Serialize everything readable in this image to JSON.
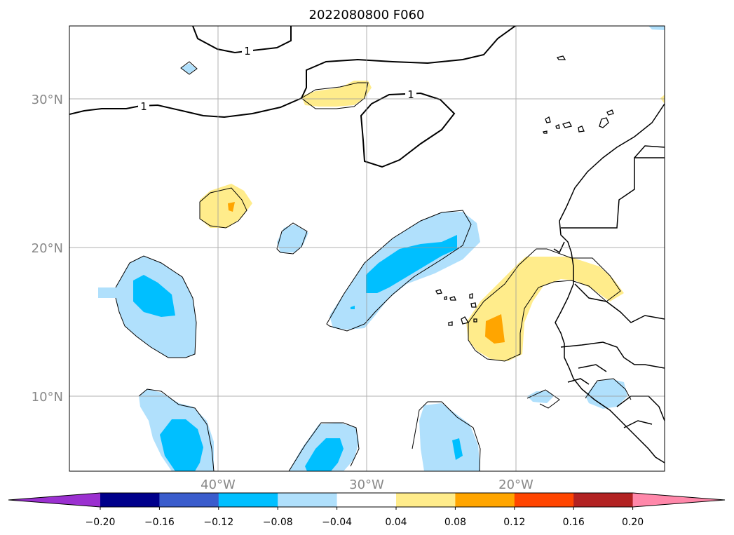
{
  "title": "2022080800 F060",
  "lat_labels": [
    "30°N",
    "20°N",
    "10°N"
  ],
  "lon_labels": [
    "40°W",
    "30°W",
    "20°W"
  ],
  "contour_labels": [
    "1",
    "1",
    "1"
  ],
  "colorbar": {
    "tick_labels": [
      "−0.20",
      "−0.16",
      "−0.12",
      "−0.08",
      "−0.04",
      "0.04",
      "0.08",
      "0.12",
      "0.16",
      "0.20"
    ],
    "colors": [
      "#9b30d0",
      "#00008b",
      "#3a5ccc",
      "#00bfff",
      "#b0e0fc",
      "#ffffff",
      "#ffec8b",
      "#ffa500",
      "#ff4500",
      "#b22222",
      "#ff88aa"
    ]
  },
  "fill_colors": {
    "light_blue": "#b0e0fc",
    "blue": "#00bfff",
    "light_yellow": "#ffec8b",
    "orange": "#ffa500"
  }
}
